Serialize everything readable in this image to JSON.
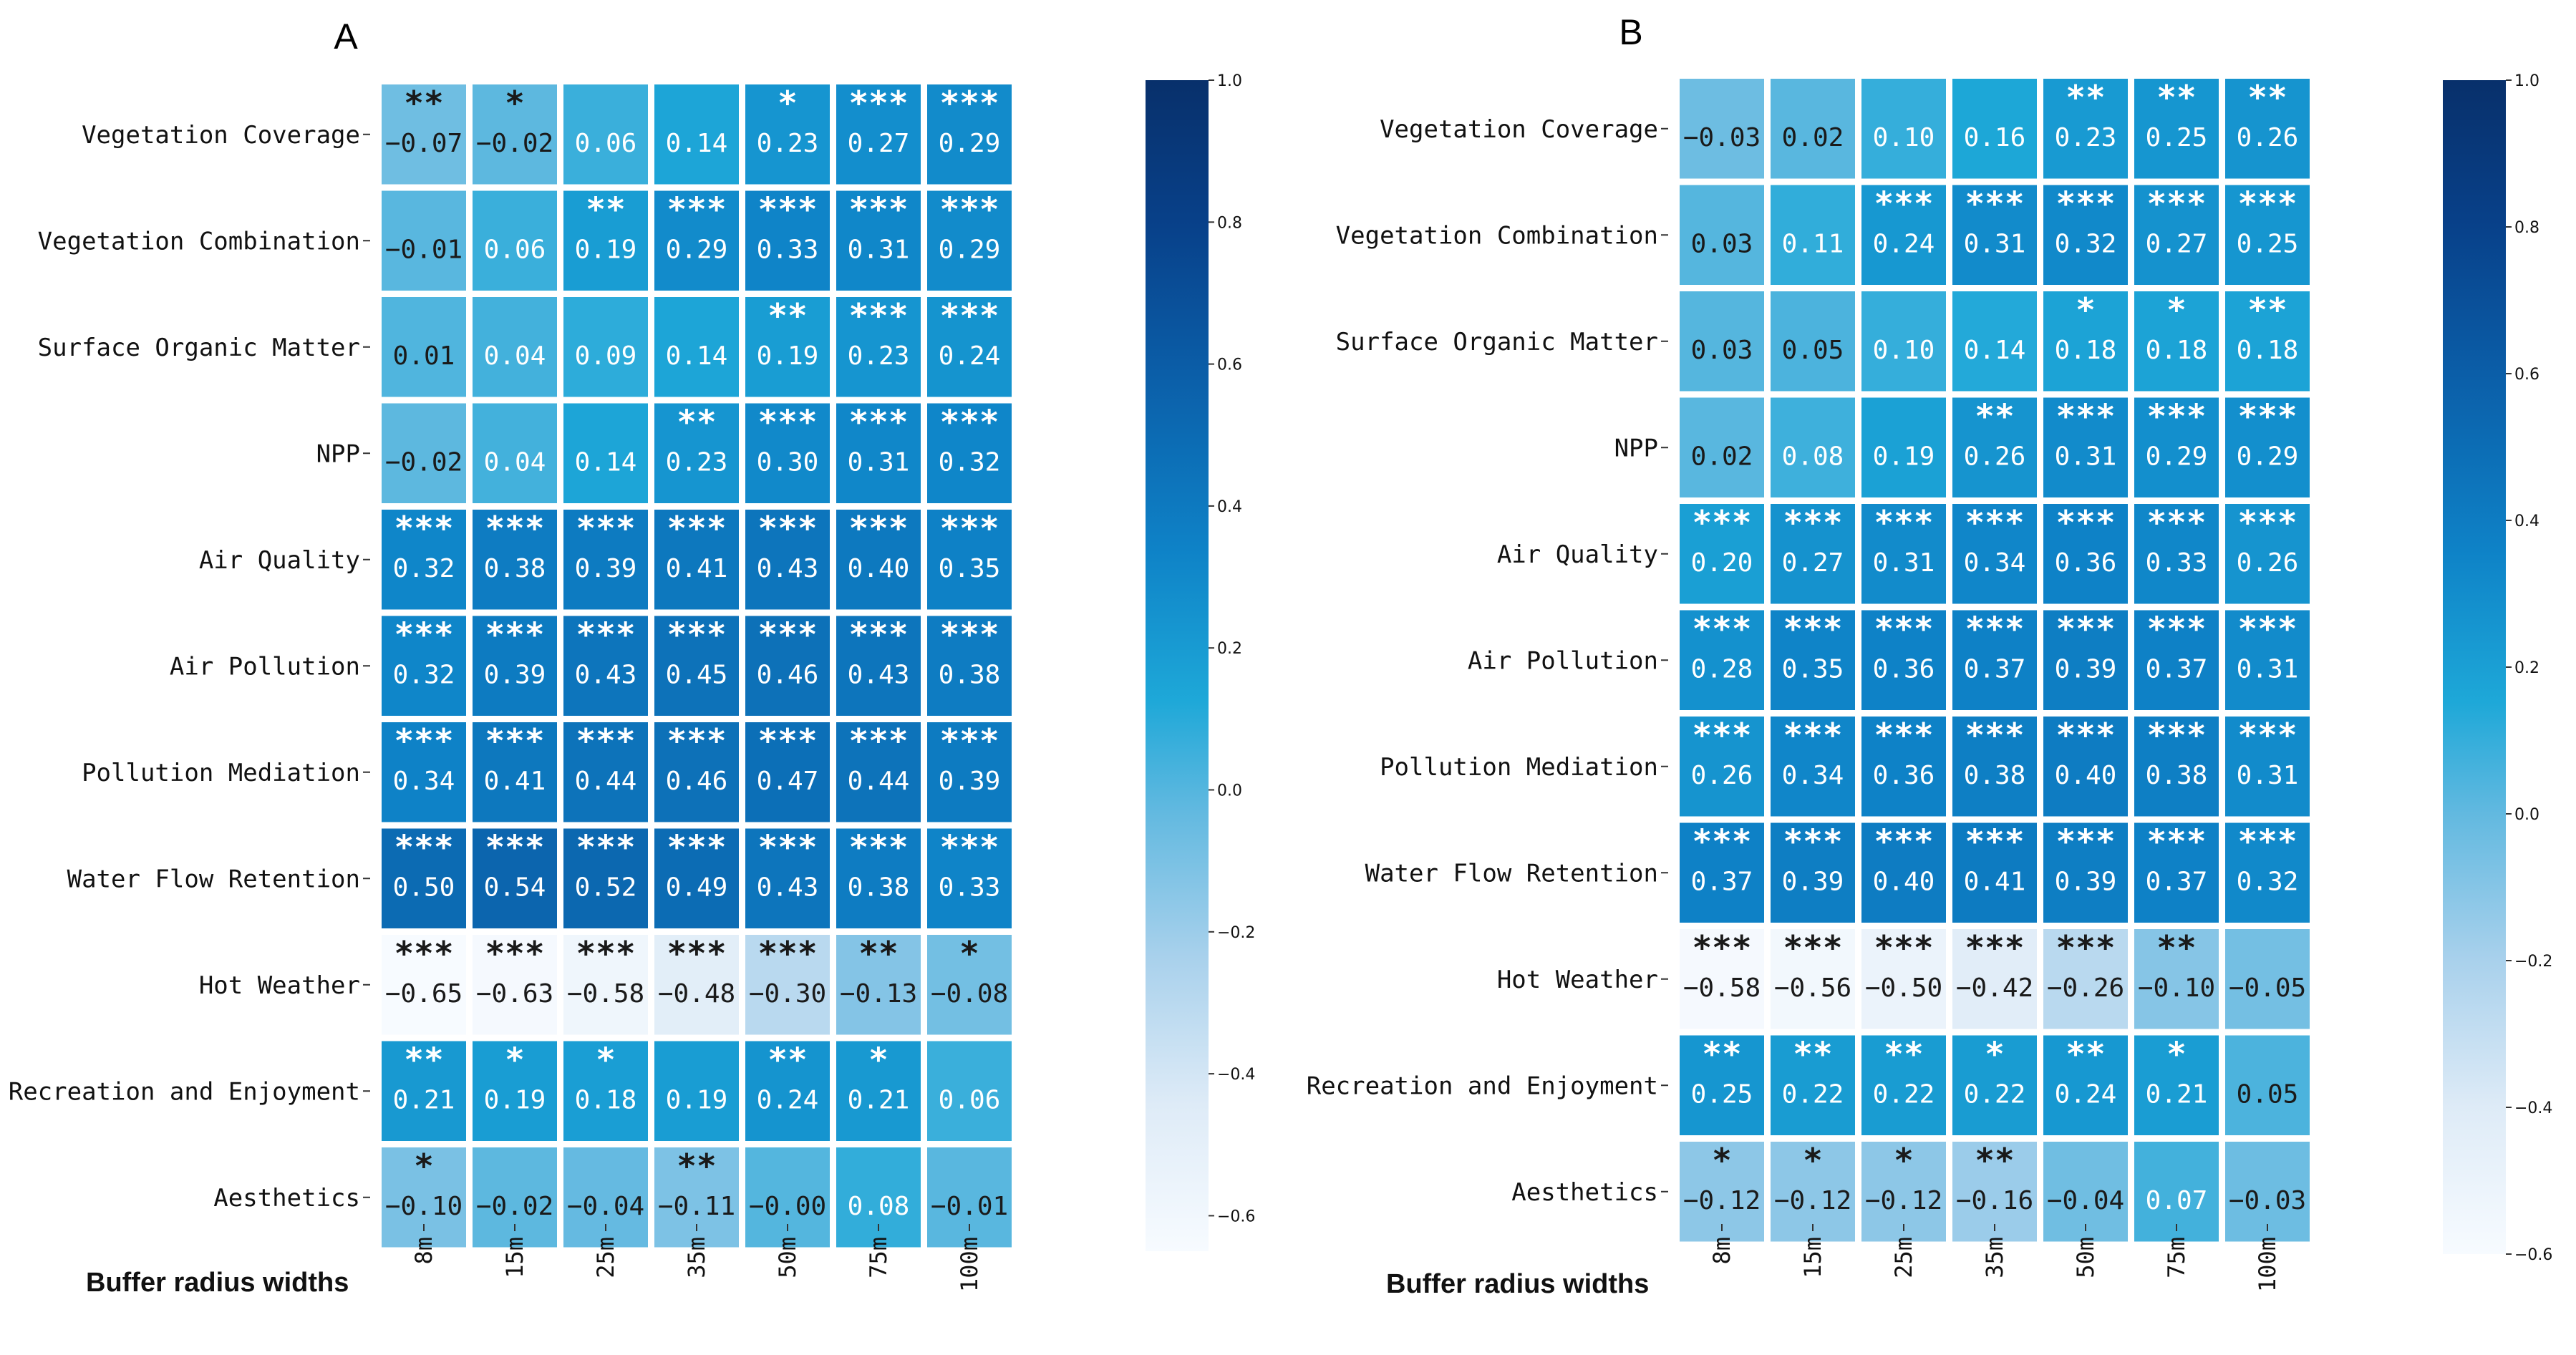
{
  "chart_data": [
    {
      "type": "heatmap",
      "panel": "A",
      "xlabel": "Buffer radius widths",
      "columns": [
        "8m",
        "15m",
        "25m",
        "35m",
        "50m",
        "75m",
        "100m"
      ],
      "rows": [
        "Vegetation Coverage",
        "Vegetation Combination",
        "Surface Organic Matter",
        "NPP",
        "Air Quality",
        "Air Pollution",
        "Pollution Mediation",
        "Water Flow Retention",
        "Hot Weather",
        "Recreation and Enjoyment",
        "Aesthetics"
      ],
      "values": [
        [
          -0.07,
          -0.02,
          0.06,
          0.14,
          0.23,
          0.27,
          0.29
        ],
        [
          -0.01,
          0.06,
          0.19,
          0.29,
          0.33,
          0.31,
          0.29
        ],
        [
          0.01,
          0.04,
          0.09,
          0.14,
          0.19,
          0.23,
          0.24
        ],
        [
          -0.02,
          0.04,
          0.14,
          0.23,
          0.3,
          0.31,
          0.32
        ],
        [
          0.32,
          0.38,
          0.39,
          0.41,
          0.43,
          0.4,
          0.35
        ],
        [
          0.32,
          0.39,
          0.43,
          0.45,
          0.46,
          0.43,
          0.38
        ],
        [
          0.34,
          0.41,
          0.44,
          0.46,
          0.47,
          0.44,
          0.39
        ],
        [
          0.5,
          0.54,
          0.52,
          0.49,
          0.43,
          0.38,
          0.33
        ],
        [
          -0.65,
          -0.63,
          -0.58,
          -0.48,
          -0.3,
          -0.13,
          -0.08
        ],
        [
          0.21,
          0.19,
          0.18,
          0.19,
          0.24,
          0.21,
          0.06
        ],
        [
          -0.1,
          -0.02,
          -0.04,
          -0.11,
          -0.0,
          0.08,
          -0.01
        ]
      ],
      "labels": [
        [
          "−0.07",
          "−0.02",
          "0.06",
          "0.14",
          "0.23",
          "0.27",
          "0.29"
        ],
        [
          "−0.01",
          "0.06",
          "0.19",
          "0.29",
          "0.33",
          "0.31",
          "0.29"
        ],
        [
          "0.01",
          "0.04",
          "0.09",
          "0.14",
          "0.19",
          "0.23",
          "0.24"
        ],
        [
          "−0.02",
          "0.04",
          "0.14",
          "0.23",
          "0.30",
          "0.31",
          "0.32"
        ],
        [
          "0.32",
          "0.38",
          "0.39",
          "0.41",
          "0.43",
          "0.40",
          "0.35"
        ],
        [
          "0.32",
          "0.39",
          "0.43",
          "0.45",
          "0.46",
          "0.43",
          "0.38"
        ],
        [
          "0.34",
          "0.41",
          "0.44",
          "0.46",
          "0.47",
          "0.44",
          "0.39"
        ],
        [
          "0.50",
          "0.54",
          "0.52",
          "0.49",
          "0.43",
          "0.38",
          "0.33"
        ],
        [
          "−0.65",
          "−0.63",
          "−0.58",
          "−0.48",
          "−0.30",
          "−0.13",
          "−0.08"
        ],
        [
          "0.21",
          "0.19",
          "0.18",
          "0.19",
          "0.24",
          "0.21",
          "0.06"
        ],
        [
          "−0.10",
          "−0.02",
          "−0.04",
          "−0.11",
          "−0.00",
          "0.08",
          "−0.01"
        ]
      ],
      "significance": [
        [
          "**",
          "*",
          "",
          "",
          "*",
          "***",
          "***"
        ],
        [
          "",
          "",
          "**",
          "***",
          "***",
          "***",
          "***"
        ],
        [
          "",
          "",
          "",
          "",
          "**",
          "***",
          "***"
        ],
        [
          "",
          "",
          "",
          "**",
          "***",
          "***",
          "***"
        ],
        [
          "***",
          "***",
          "***",
          "***",
          "***",
          "***",
          "***"
        ],
        [
          "***",
          "***",
          "***",
          "***",
          "***",
          "***",
          "***"
        ],
        [
          "***",
          "***",
          "***",
          "***",
          "***",
          "***",
          "***"
        ],
        [
          "***",
          "***",
          "***",
          "***",
          "***",
          "***",
          "***"
        ],
        [
          "***",
          "***",
          "***",
          "***",
          "***",
          "**",
          "*"
        ],
        [
          "**",
          "*",
          "*",
          "",
          "**",
          "*",
          ""
        ],
        [
          "*",
          "",
          "",
          "**",
          "",
          "",
          ""
        ]
      ],
      "colorbar": {
        "vmin": -0.65,
        "vmax": 1.0,
        "ticks": [
          "1.0",
          "0.8",
          "0.6",
          "0.4",
          "0.2",
          "0.0",
          "−0.2",
          "−0.4",
          "−0.6"
        ]
      }
    },
    {
      "type": "heatmap",
      "panel": "B",
      "xlabel": "Buffer radius widths",
      "columns": [
        "8m",
        "15m",
        "25m",
        "35m",
        "50m",
        "75m",
        "100m"
      ],
      "rows": [
        "Vegetation Coverage",
        "Vegetation Combination",
        "Surface Organic Matter",
        "NPP",
        "Air Quality",
        "Air Pollution",
        "Pollution Mediation",
        "Water Flow Retention",
        "Hot Weather",
        "Recreation and Enjoyment",
        "Aesthetics"
      ],
      "values": [
        [
          -0.03,
          0.02,
          0.1,
          0.16,
          0.23,
          0.25,
          0.26
        ],
        [
          0.03,
          0.11,
          0.24,
          0.31,
          0.32,
          0.27,
          0.25
        ],
        [
          0.03,
          0.05,
          0.1,
          0.14,
          0.18,
          0.18,
          0.18
        ],
        [
          0.02,
          0.08,
          0.19,
          0.26,
          0.31,
          0.29,
          0.29
        ],
        [
          0.2,
          0.27,
          0.31,
          0.34,
          0.36,
          0.33,
          0.26
        ],
        [
          0.28,
          0.35,
          0.36,
          0.37,
          0.39,
          0.37,
          0.31
        ],
        [
          0.26,
          0.34,
          0.36,
          0.38,
          0.4,
          0.38,
          0.31
        ],
        [
          0.37,
          0.39,
          0.4,
          0.41,
          0.39,
          0.37,
          0.32
        ],
        [
          -0.58,
          -0.56,
          -0.5,
          -0.42,
          -0.26,
          -0.1,
          -0.05
        ],
        [
          0.25,
          0.22,
          0.22,
          0.22,
          0.24,
          0.21,
          0.05
        ],
        [
          -0.12,
          -0.12,
          -0.12,
          -0.16,
          -0.04,
          0.07,
          -0.03
        ]
      ],
      "labels": [
        [
          "−0.03",
          "0.02",
          "0.10",
          "0.16",
          "0.23",
          "0.25",
          "0.26"
        ],
        [
          "0.03",
          "0.11",
          "0.24",
          "0.31",
          "0.32",
          "0.27",
          "0.25"
        ],
        [
          "0.03",
          "0.05",
          "0.10",
          "0.14",
          "0.18",
          "0.18",
          "0.18"
        ],
        [
          "0.02",
          "0.08",
          "0.19",
          "0.26",
          "0.31",
          "0.29",
          "0.29"
        ],
        [
          "0.20",
          "0.27",
          "0.31",
          "0.34",
          "0.36",
          "0.33",
          "0.26"
        ],
        [
          "0.28",
          "0.35",
          "0.36",
          "0.37",
          "0.39",
          "0.37",
          "0.31"
        ],
        [
          "0.26",
          "0.34",
          "0.36",
          "0.38",
          "0.40",
          "0.38",
          "0.31"
        ],
        [
          "0.37",
          "0.39",
          "0.40",
          "0.41",
          "0.39",
          "0.37",
          "0.32"
        ],
        [
          "−0.58",
          "−0.56",
          "−0.50",
          "−0.42",
          "−0.26",
          "−0.10",
          "−0.05"
        ],
        [
          "0.25",
          "0.22",
          "0.22",
          "0.22",
          "0.24",
          "0.21",
          "0.05"
        ],
        [
          "−0.12",
          "−0.12",
          "−0.12",
          "−0.16",
          "−0.04",
          "0.07",
          "−0.03"
        ]
      ],
      "significance": [
        [
          "",
          "",
          "",
          "",
          "**",
          "**",
          "**"
        ],
        [
          "",
          "",
          "***",
          "***",
          "***",
          "***",
          "***"
        ],
        [
          "",
          "",
          "",
          "",
          "*",
          "*",
          "**"
        ],
        [
          "",
          "",
          "",
          "**",
          "***",
          "***",
          "***"
        ],
        [
          "***",
          "***",
          "***",
          "***",
          "***",
          "***",
          "***"
        ],
        [
          "***",
          "***",
          "***",
          "***",
          "***",
          "***",
          "***"
        ],
        [
          "***",
          "***",
          "***",
          "***",
          "***",
          "***",
          "***"
        ],
        [
          "***",
          "***",
          "***",
          "***",
          "***",
          "***",
          "***"
        ],
        [
          "***",
          "***",
          "***",
          "***",
          "***",
          "**",
          ""
        ],
        [
          "**",
          "**",
          "**",
          "*",
          "**",
          "*",
          ""
        ],
        [
          "*",
          "*",
          "*",
          "**",
          "",
          "",
          ""
        ]
      ],
      "colorbar": {
        "vmin": -0.6,
        "vmax": 1.0,
        "ticks": [
          "1.0",
          "0.8",
          "0.6",
          "0.4",
          "0.2",
          "0.0",
          "−0.2",
          "−0.4",
          "−0.6"
        ]
      }
    }
  ]
}
